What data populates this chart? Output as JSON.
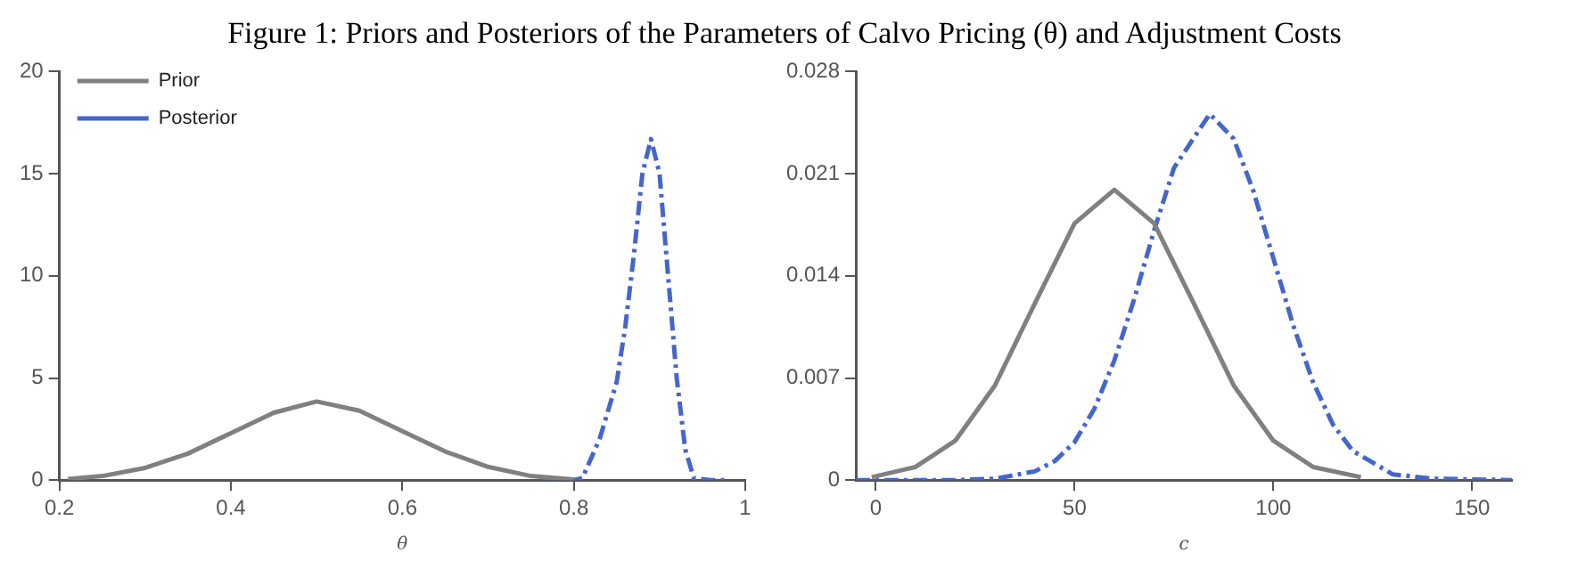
{
  "chart_data": [
    {
      "type": "line",
      "title": "Figure 1: Priors and Posteriors of the Parameters of Calvo Pricing (θ) and Adjustment Costs",
      "xlabel": "θ",
      "xlim": [
        0.2,
        1
      ],
      "xticks": [
        0.2,
        0.4,
        0.6,
        0.8,
        1
      ],
      "ylim": [
        0,
        20
      ],
      "yticks": [
        0,
        5,
        10,
        15,
        20
      ],
      "grid": false,
      "legend": "top left",
      "marker": "none",
      "series": [
        {
          "name": "Prior",
          "color": "#808080",
          "line_style": "solid",
          "x": [
            0.21,
            0.25,
            0.3,
            0.35,
            0.4,
            0.45,
            0.5,
            0.55,
            0.6,
            0.65,
            0.7,
            0.75,
            0.8
          ],
          "values": [
            0.05,
            0.2,
            0.6,
            1.3,
            2.3,
            3.3,
            3.85,
            3.4,
            2.4,
            1.4,
            0.65,
            0.2,
            0.03
          ]
        },
        {
          "name": "Posterior",
          "color": "#4466cc",
          "line_style": "dashed",
          "x": [
            0.76,
            0.8,
            0.81,
            0.83,
            0.85,
            0.86,
            0.87,
            0.88,
            0.89,
            0.9,
            0.91,
            0.92,
            0.93,
            0.94,
            0.96,
            0.98
          ],
          "values": [
            0,
            0,
            0.1,
            2,
            4.8,
            7.5,
            11,
            15,
            16.7,
            15,
            10,
            5,
            1.5,
            0.1,
            0,
            0
          ]
        }
      ]
    },
    {
      "type": "line",
      "xlabel": "c",
      "xlim": [
        -5,
        160
      ],
      "xticks": [
        0,
        50,
        100,
        150
      ],
      "ylim": [
        0,
        0.028
      ],
      "yticks": [
        0,
        0.007,
        0.014,
        0.021,
        0.028
      ],
      "grid": false,
      "legend": false,
      "marker": "none",
      "series": [
        {
          "color": "#808080",
          "line_style": "solid",
          "x": [
            -1,
            10,
            20,
            30,
            40,
            50,
            60,
            70,
            80,
            90,
            100,
            110,
            122
          ],
          "values": [
            0.0002,
            0.0009,
            0.0027,
            0.0065,
            0.0121,
            0.0176,
            0.0199,
            0.0176,
            0.0121,
            0.0065,
            0.0027,
            0.0009,
            0.0002
          ]
        },
        {
          "color": "#4466cc",
          "line_style": "dashed",
          "x": [
            -5,
            20,
            30,
            40,
            45,
            50,
            55,
            60,
            65,
            70,
            75,
            84,
            90,
            95,
            100,
            105,
            110,
            115,
            120,
            130,
            140,
            160
          ],
          "values": [
            0,
            0,
            0.0001,
            0.0006,
            0.0013,
            0.0026,
            0.0049,
            0.0082,
            0.0124,
            0.0171,
            0.0214,
            0.0251,
            0.0234,
            0.0198,
            0.0152,
            0.0106,
            0.0067,
            0.0038,
            0.002,
            0.0004,
            0.0001,
            0
          ]
        }
      ]
    }
  ]
}
